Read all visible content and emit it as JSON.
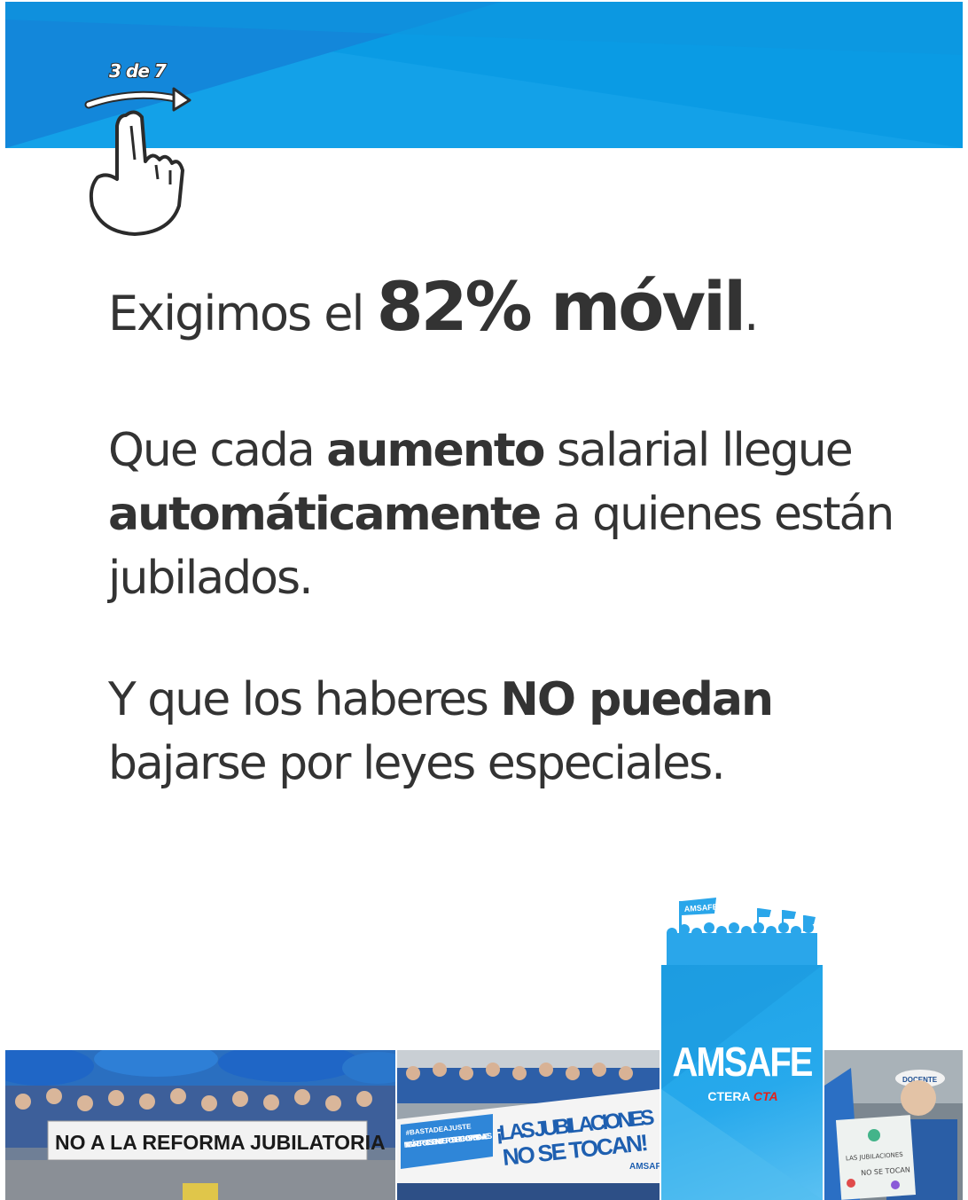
{
  "page": {
    "colors": {
      "brand_blue": "#1ea3e6",
      "banner_light": "#0aa0e6",
      "banner_dark": "#1177cc",
      "text_dark": "#333333",
      "cta_red": "#e2231a"
    }
  },
  "swipe": {
    "label": "3 de 7",
    "icon": "hand-swipe-icon"
  },
  "headline": {
    "prefix": "Exigimos el ",
    "emphasis": "82% móvil",
    "suffix": "."
  },
  "paragraph2": {
    "t1": "Que cada ",
    "b1": "aumento",
    "t2": " salarial llegue ",
    "b2": "automáticamente",
    "t3": " a quienes están jubilados."
  },
  "paragraph3": {
    "t1": "Y que los haberes ",
    "b1": "NO puedan",
    "t2": " bajarse por leyes especiales."
  },
  "logo": {
    "name": "AMSAFE",
    "ctera": "CTERA",
    "cta": "CTA",
    "crowd_flag": "AMSAFE"
  },
  "photos": {
    "left_banner": "NO A LA REFORMA JUBILATORIA",
    "middle_banner_main": "¡LAS JUBILACIONES NO SE TOCAN!",
    "middle_banner_line1": "¡LAS JUBILACIONES",
    "middle_banner_line2": "NO SE TOCAN!",
    "middle_banner_side": "NINGÚN RETROCESO EN NUESTROS DERECHOS PREVISIONALES",
    "middle_banner_logo": "AMSAFE",
    "middle_banner_hashtag": "#BASTADEAJUSTE",
    "right_sign_line1": "LAS JUBILACIONES",
    "right_sign_line2": "NO SE TOCAN",
    "right_cap": "DOCENTE"
  }
}
